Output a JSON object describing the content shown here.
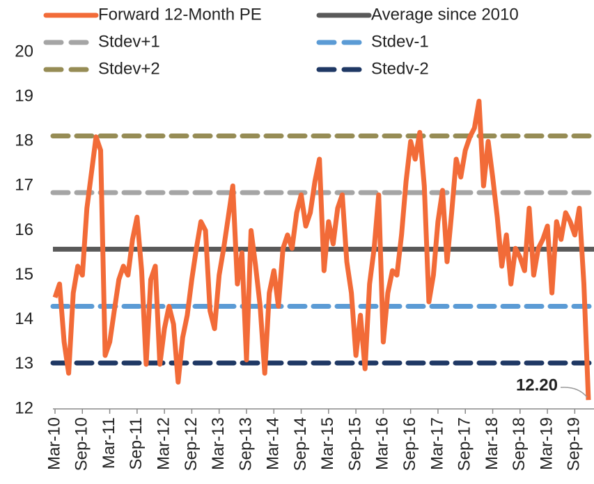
{
  "chart_data": {
    "type": "line",
    "categories": [
      "Mar-10",
      null,
      null,
      null,
      null,
      null,
      "Sep-10",
      null,
      null,
      null,
      null,
      null,
      "Mar-11",
      null,
      null,
      null,
      null,
      null,
      "Sep-11",
      null,
      null,
      null,
      null,
      null,
      "Mar-12",
      null,
      null,
      null,
      null,
      null,
      "Sep-12",
      null,
      null,
      null,
      null,
      null,
      "Mar-13",
      null,
      null,
      null,
      null,
      null,
      "Sep-13",
      null,
      null,
      null,
      null,
      null,
      "Mar-14",
      null,
      null,
      null,
      null,
      null,
      "Sep-14",
      null,
      null,
      null,
      null,
      null,
      "Mar-15",
      null,
      null,
      null,
      null,
      null,
      "Sep-15",
      null,
      null,
      null,
      null,
      null,
      "Mar-16",
      null,
      null,
      null,
      null,
      null,
      "Sep-16",
      null,
      null,
      null,
      null,
      null,
      "Mar-17",
      null,
      null,
      null,
      null,
      null,
      "Sep-17",
      null,
      null,
      null,
      null,
      null,
      "Mar-18",
      null,
      null,
      null,
      null,
      null,
      "Sep-18",
      null,
      null,
      null,
      null,
      null,
      "Mar-19",
      null,
      null,
      null,
      null,
      null,
      "Sep-19",
      null,
      null,
      null
    ],
    "series": [
      {
        "name": "Forward 12-Month PE",
        "color": "#f26b38",
        "values": [
          14.5,
          14.8,
          13.5,
          12.8,
          14.6,
          15.2,
          15.0,
          16.5,
          17.3,
          18.1,
          17.8,
          13.2,
          13.5,
          14.2,
          14.9,
          15.2,
          15.0,
          15.8,
          16.3,
          15.1,
          13.0,
          14.9,
          15.2,
          13.0,
          13.8,
          14.3,
          13.9,
          12.6,
          13.6,
          14.1,
          14.9,
          15.6,
          16.2,
          16.0,
          14.2,
          13.8,
          15.0,
          15.6,
          16.3,
          17.0,
          14.8,
          15.5,
          13.1,
          16.0,
          15.2,
          14.3,
          12.8,
          14.6,
          15.1,
          14.3,
          15.6,
          15.9,
          15.6,
          16.4,
          16.8,
          16.1,
          16.4,
          17.1,
          17.6,
          15.1,
          16.2,
          15.7,
          16.5,
          16.8,
          15.3,
          14.6,
          13.2,
          14.1,
          12.9,
          14.8,
          15.6,
          16.8,
          13.5,
          14.6,
          15.1,
          15.0,
          15.9,
          17.1,
          18.0,
          17.6,
          18.2,
          17.0,
          14.4,
          15.0,
          16.2,
          16.9,
          15.3,
          16.4,
          17.6,
          17.2,
          17.8,
          18.1,
          18.3,
          18.9,
          17.0,
          18.0,
          17.2,
          16.3,
          15.2,
          15.9,
          14.8,
          15.6,
          15.4,
          15.1,
          16.5,
          15.0,
          15.6,
          15.8,
          16.1,
          14.6,
          16.2,
          15.8,
          16.4,
          16.2,
          15.9,
          16.5,
          14.8,
          12.2
        ]
      }
    ],
    "reference_lines": [
      {
        "name": "Average since 2010",
        "color": "#595959",
        "value": 15.58,
        "dashed": false
      },
      {
        "name": "Stdev+1",
        "color": "#a5a5a5",
        "value": 16.85,
        "dashed": true
      },
      {
        "name": "Stdev-1",
        "color": "#5b9bd5",
        "value": 14.3,
        "dashed": true
      },
      {
        "name": "Stdev+2",
        "color": "#968c55",
        "value": 18.12,
        "dashed": true
      },
      {
        "name": "Stedv-2",
        "color": "#1f3864",
        "value": 13.03,
        "dashed": true
      }
    ],
    "annotation": "12.20",
    "ylim": [
      12,
      20
    ],
    "yticks": [
      12,
      13,
      14,
      15,
      16,
      17,
      18,
      19,
      20
    ],
    "grid": false
  }
}
